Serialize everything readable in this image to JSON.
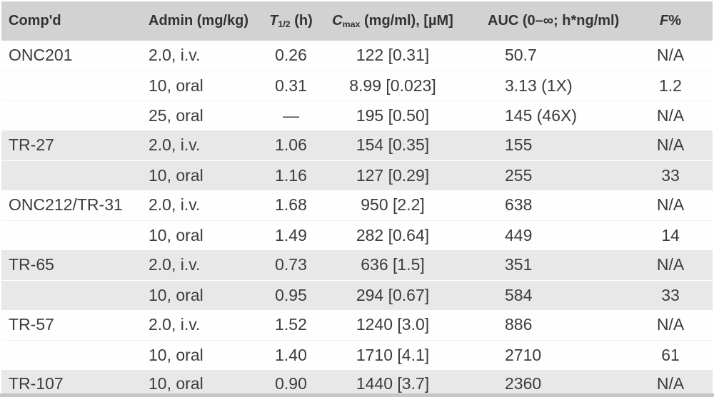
{
  "colors": {
    "header_bg": "#d2d2d2",
    "shaded_band_bg": "#e8e8e8",
    "plain_band_bg": "#fefefe",
    "text": "#3c3c3c",
    "header_text": "#333333",
    "bottom_edge": "#c6c6c6"
  },
  "table": {
    "columns": [
      {
        "key": "compound",
        "italic": "",
        "sub": "",
        "text": "Comp'd"
      },
      {
        "key": "admin",
        "italic": "",
        "sub": "",
        "text": "Admin (mg/kg)"
      },
      {
        "key": "thalf",
        "italic": "T",
        "sub": "1/2",
        "text": " (h)"
      },
      {
        "key": "cmax",
        "italic": "C",
        "sub": "max",
        "text": " (mg/ml), [µM]"
      },
      {
        "key": "auc",
        "italic": "",
        "sub": "",
        "text": "AUC (0–∞; h*ng/ml)"
      },
      {
        "key": "f",
        "italic": "F",
        "sub": "",
        "text": "%"
      }
    ],
    "groups": [
      {
        "compound": "ONC201",
        "shaded": false,
        "rows": [
          {
            "admin": "2.0, i.v.",
            "thalf": "0.26",
            "cmax": "122 [0.31]",
            "auc": "50.7",
            "f": "N/A"
          },
          {
            "admin": "10, oral",
            "thalf": "0.31",
            "cmax": "8.99 [0.023]",
            "auc": "3.13 (1X)",
            "f": "1.2"
          },
          {
            "admin": "25, oral",
            "thalf": "—",
            "cmax": "195 [0.50]",
            "auc": "145 (46X)",
            "f": "N/A"
          }
        ]
      },
      {
        "compound": "TR-27",
        "shaded": true,
        "rows": [
          {
            "admin": "2.0, i.v.",
            "thalf": "1.06",
            "cmax": "154 [0.35]",
            "auc": "155",
            "f": "N/A"
          },
          {
            "admin": "10, oral",
            "thalf": "1.16",
            "cmax": "127 [0.29]",
            "auc": "255",
            "f": "33"
          }
        ]
      },
      {
        "compound": "ONC212/TR-31",
        "shaded": false,
        "rows": [
          {
            "admin": "2.0, i.v.",
            "thalf": "1.68",
            "cmax": "950 [2.2]",
            "auc": "638",
            "f": "N/A"
          },
          {
            "admin": "10, oral",
            "thalf": "1.49",
            "cmax": "282 [0.64]",
            "auc": "449",
            "f": "14"
          }
        ]
      },
      {
        "compound": "TR-65",
        "shaded": true,
        "rows": [
          {
            "admin": "2.0, i.v.",
            "thalf": "0.73",
            "cmax": "636 [1.5]",
            "auc": "351",
            "f": "N/A"
          },
          {
            "admin": "10, oral",
            "thalf": "0.95",
            "cmax": "294 [0.67]",
            "auc": "584",
            "f": "33"
          }
        ]
      },
      {
        "compound": "TR-57",
        "shaded": false,
        "rows": [
          {
            "admin": "2.0, i.v.",
            "thalf": "1.52",
            "cmax": "1240 [3.0]",
            "auc": "886",
            "f": "N/A"
          },
          {
            "admin": "10, oral",
            "thalf": "1.40",
            "cmax": "1710 [4.1]",
            "auc": "2710",
            "f": "61"
          }
        ]
      },
      {
        "compound": "TR-107",
        "shaded": true,
        "rows": [
          {
            "admin": "10, oral",
            "thalf": "0.90",
            "cmax": "1440 [3.7]",
            "auc": "2360",
            "f": "N/A"
          }
        ]
      }
    ]
  }
}
